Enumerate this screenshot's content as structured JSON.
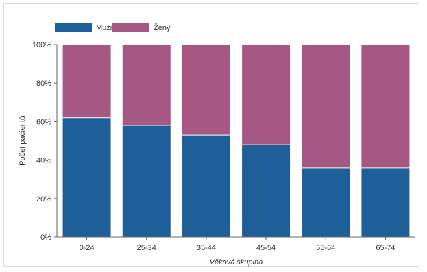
{
  "chart_data": {
    "type": "bar",
    "stacked": true,
    "percent": true,
    "categories": [
      "0-24",
      "25-34",
      "35-44",
      "45-54",
      "55-64",
      "65-74"
    ],
    "series": [
      {
        "name": "Muži",
        "color": "#1f5f99",
        "values": [
          62,
          58,
          53,
          48,
          36,
          36
        ]
      },
      {
        "name": "Ženy",
        "color": "#a75783",
        "values": [
          38,
          42,
          47,
          52,
          64,
          64
        ]
      }
    ],
    "title": "",
    "xlabel": "Věková skupina",
    "ylabel": "Počet pacientů",
    "ylim": [
      0,
      100
    ],
    "yticks": [
      "0%",
      "20%",
      "40%",
      "60%",
      "80%",
      "100%"
    ],
    "grid": false,
    "legend": "top-left"
  }
}
